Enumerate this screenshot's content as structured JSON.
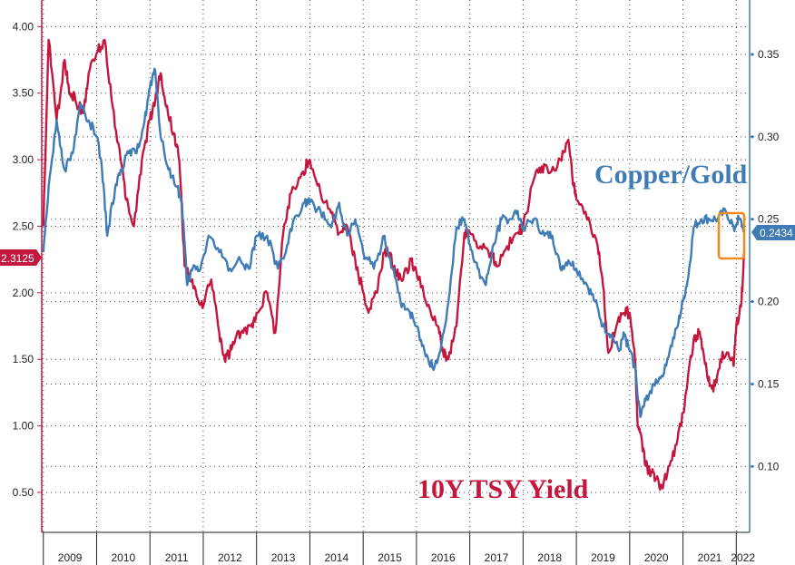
{
  "chart_data": {
    "type": "line",
    "title": "",
    "xlabel": "",
    "ylabel": "",
    "x_ticks": [
      "2009",
      "2010",
      "2011",
      "2012",
      "2013",
      "2014",
      "2015",
      "2016",
      "2017",
      "2018",
      "2019",
      "2020",
      "2021",
      "2022"
    ],
    "x_range": [
      2008.97,
      2022.25
    ],
    "y_left": {
      "ticks": [
        "0.50",
        "1.00",
        "1.50",
        "2.00",
        "2.50",
        "3.00",
        "3.50",
        "4.00"
      ],
      "range": [
        0.2,
        4.2
      ]
    },
    "y_right": {
      "ticks": [
        "0.10",
        "0.15",
        "0.20",
        "0.25",
        "0.30",
        "0.35"
      ],
      "range": [
        0.06,
        0.383
      ]
    },
    "grid": true,
    "annotations": {
      "copper_gold": "Copper/Gold",
      "tsy_yield": "10Y TSY Yield"
    },
    "last_values": {
      "left": "2.3125",
      "right": "0.2434"
    },
    "colors": {
      "tsy": "#c4173d",
      "copper_gold": "#3f7cb6",
      "highlight": "#f08a1c"
    },
    "series": [
      {
        "name": "10Y TSY Yield",
        "axis": "left",
        "x": [
          2009.0,
          2009.1,
          2009.25,
          2009.4,
          2009.5,
          2009.6,
          2009.75,
          2009.85,
          2010.0,
          2010.15,
          2010.3,
          2010.45,
          2010.55,
          2010.7,
          2010.85,
          2011.0,
          2011.1,
          2011.2,
          2011.3,
          2011.45,
          2011.55,
          2011.65,
          2011.75,
          2011.9,
          2012.0,
          2012.15,
          2012.3,
          2012.4,
          2012.5,
          2012.6,
          2012.75,
          2012.9,
          2013.0,
          2013.2,
          2013.35,
          2013.5,
          2013.65,
          2013.85,
          2014.0,
          2014.2,
          2014.4,
          2014.55,
          2014.7,
          2014.85,
          2015.0,
          2015.1,
          2015.25,
          2015.4,
          2015.5,
          2015.6,
          2015.75,
          2015.9,
          2016.0,
          2016.2,
          2016.4,
          2016.5,
          2016.6,
          2016.75,
          2016.9,
          2017.0,
          2017.2,
          2017.4,
          2017.5,
          2017.7,
          2017.9,
          2018.0,
          2018.2,
          2018.35,
          2018.5,
          2018.7,
          2018.85,
          2018.95,
          2019.0,
          2019.2,
          2019.4,
          2019.5,
          2019.6,
          2019.75,
          2019.9,
          2020.0,
          2020.1,
          2020.15,
          2020.2,
          2020.3,
          2020.4,
          2020.5,
          2020.6,
          2020.75,
          2020.9,
          2021.0,
          2021.1,
          2021.2,
          2021.3,
          2021.4,
          2021.5,
          2021.6,
          2021.7,
          2021.85,
          2021.95,
          2022.0,
          2022.1,
          2022.15
        ],
        "values": [
          2.5,
          3.9,
          3.3,
          3.75,
          3.5,
          3.45,
          3.35,
          3.65,
          3.8,
          3.9,
          3.4,
          3.0,
          2.7,
          2.5,
          3.0,
          3.3,
          3.45,
          3.65,
          3.4,
          3.2,
          3.0,
          2.2,
          2.1,
          1.95,
          1.9,
          2.1,
          1.7,
          1.5,
          1.55,
          1.65,
          1.7,
          1.75,
          1.85,
          2.0,
          1.7,
          2.45,
          2.75,
          2.9,
          3.0,
          2.75,
          2.6,
          2.45,
          2.5,
          2.25,
          2.0,
          1.85,
          2.0,
          2.3,
          2.3,
          2.15,
          2.1,
          2.25,
          2.15,
          1.9,
          1.75,
          1.55,
          1.5,
          1.75,
          2.45,
          2.45,
          2.35,
          2.3,
          2.2,
          2.35,
          2.45,
          2.5,
          2.85,
          2.95,
          2.9,
          3.0,
          3.15,
          2.8,
          2.7,
          2.55,
          2.35,
          2.05,
          1.55,
          1.75,
          1.85,
          1.85,
          1.5,
          1.0,
          0.95,
          0.7,
          0.65,
          0.6,
          0.55,
          0.7,
          0.9,
          1.1,
          1.4,
          1.65,
          1.7,
          1.5,
          1.3,
          1.3,
          1.5,
          1.55,
          1.45,
          1.75,
          1.95,
          2.31
        ]
      },
      {
        "name": "Copper/Gold",
        "axis": "right",
        "x": [
          2009.0,
          2009.1,
          2009.25,
          2009.4,
          2009.55,
          2009.7,
          2009.85,
          2010.0,
          2010.1,
          2010.2,
          2010.35,
          2010.45,
          2010.6,
          2010.75,
          2010.9,
          2011.0,
          2011.1,
          2011.2,
          2011.35,
          2011.5,
          2011.6,
          2011.7,
          2011.8,
          2011.95,
          2012.1,
          2012.3,
          2012.5,
          2012.7,
          2012.85,
          2013.0,
          2013.2,
          2013.4,
          2013.55,
          2013.7,
          2013.9,
          2014.0,
          2014.2,
          2014.4,
          2014.55,
          2014.7,
          2014.85,
          2015.0,
          2015.2,
          2015.4,
          2015.55,
          2015.7,
          2015.85,
          2016.0,
          2016.15,
          2016.3,
          2016.45,
          2016.6,
          2016.75,
          2016.9,
          2017.0,
          2017.15,
          2017.3,
          2017.45,
          2017.6,
          2017.75,
          2017.9,
          2018.0,
          2018.2,
          2018.4,
          2018.55,
          2018.7,
          2018.85,
          2019.0,
          2019.2,
          2019.35,
          2019.5,
          2019.65,
          2019.8,
          2019.9,
          2020.0,
          2020.1,
          2020.2,
          2020.3,
          2020.45,
          2020.6,
          2020.75,
          2020.9,
          2021.0,
          2021.1,
          2021.2,
          2021.35,
          2021.5,
          2021.65,
          2021.8,
          2021.95,
          2022.05,
          2022.15
        ],
        "values": [
          0.23,
          0.27,
          0.31,
          0.28,
          0.29,
          0.32,
          0.31,
          0.3,
          0.28,
          0.24,
          0.27,
          0.28,
          0.29,
          0.29,
          0.31,
          0.33,
          0.34,
          0.3,
          0.28,
          0.27,
          0.26,
          0.21,
          0.22,
          0.22,
          0.24,
          0.23,
          0.22,
          0.225,
          0.22,
          0.24,
          0.24,
          0.22,
          0.23,
          0.25,
          0.26,
          0.26,
          0.255,
          0.245,
          0.26,
          0.24,
          0.25,
          0.23,
          0.22,
          0.24,
          0.22,
          0.2,
          0.195,
          0.185,
          0.17,
          0.16,
          0.17,
          0.2,
          0.245,
          0.25,
          0.235,
          0.22,
          0.21,
          0.235,
          0.25,
          0.25,
          0.255,
          0.245,
          0.25,
          0.24,
          0.24,
          0.22,
          0.225,
          0.22,
          0.21,
          0.2,
          0.185,
          0.18,
          0.17,
          0.18,
          0.17,
          0.16,
          0.13,
          0.14,
          0.15,
          0.155,
          0.17,
          0.185,
          0.2,
          0.215,
          0.245,
          0.25,
          0.25,
          0.25,
          0.255,
          0.245,
          0.25,
          0.2434
        ]
      }
    ]
  }
}
